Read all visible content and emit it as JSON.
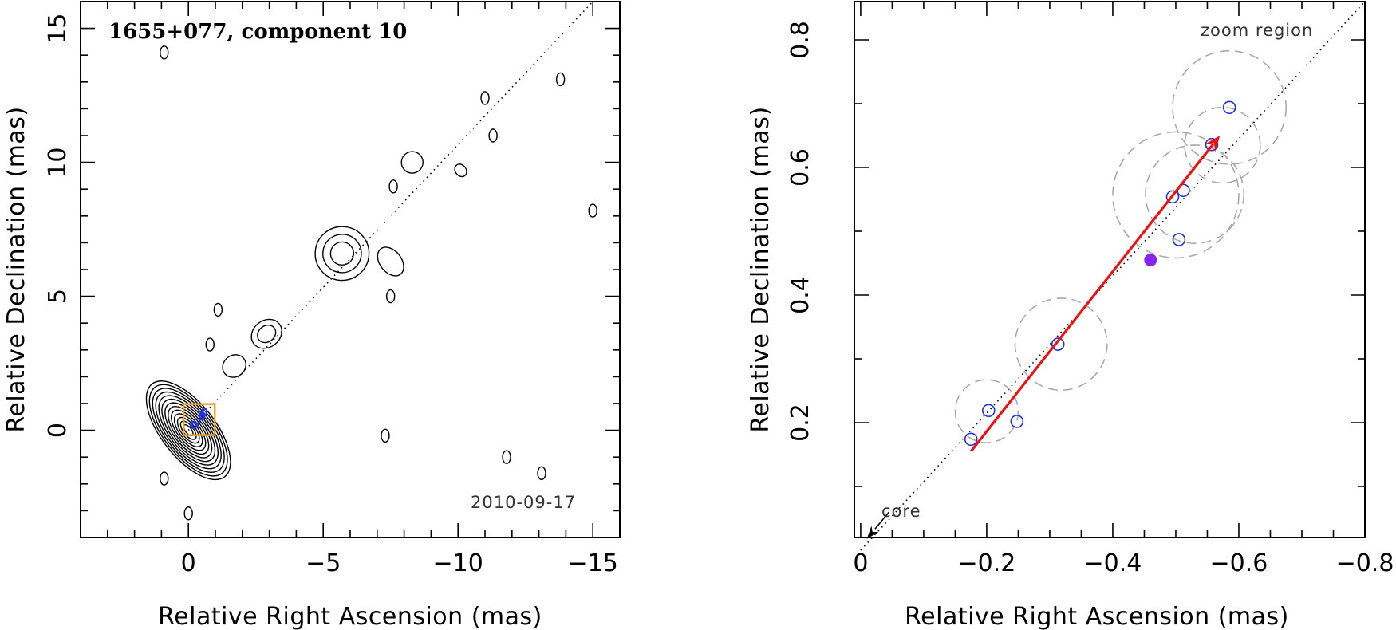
{
  "colors": {
    "axis": "#000000",
    "contour": "#000000",
    "epoch_marker": "#2233dd",
    "velocity_arrow": "#ee1111",
    "mean_position": "#8822ee",
    "uncertainty_circle": "#aaaaaa",
    "zoom_box": "#f0a020"
  },
  "chart_data": [
    {
      "type": "contour",
      "title": "1655+077, component 10",
      "xlabel": "Relative Right Ascension (mas)",
      "ylabel": "Relative Declination (mas)",
      "xlim": [
        4,
        -16
      ],
      "ylim": [
        -4,
        16
      ],
      "x_ticks": [
        0,
        -5,
        -10,
        -15
      ],
      "y_ticks": [
        0,
        5,
        10,
        15
      ],
      "x_tick_labels": [
        "0",
        "−5",
        "−10",
        "−15"
      ],
      "y_tick_labels": [
        "0",
        "5",
        "10",
        "15"
      ],
      "date_label": "2010-09-17",
      "jet_axis": {
        "from": [
          0,
          0
        ],
        "to": [
          -15,
          16
        ]
      },
      "zoom_box": {
        "x": [
          -0.8,
          0
        ],
        "y": [
          0,
          0.8
        ]
      },
      "components": [
        {
          "x": 0,
          "y": 0,
          "rx": 1.0,
          "ry": 2.2,
          "levels": 13
        },
        {
          "x": -2.9,
          "y": 3.6,
          "rx": 0.6,
          "ry": 0.5,
          "levels": 2
        },
        {
          "x": -1.7,
          "y": 2.4,
          "rx": 0.45,
          "ry": 0.4,
          "levels": 1
        },
        {
          "x": -5.7,
          "y": 6.6,
          "rx": 1.0,
          "ry": 1.0,
          "levels": 3
        },
        {
          "x": -7.5,
          "y": 6.3,
          "rx": 0.4,
          "ry": 0.6,
          "levels": 1
        },
        {
          "x": -8.3,
          "y": 10.0,
          "rx": 0.4,
          "ry": 0.4,
          "levels": 1
        },
        {
          "x": -10.1,
          "y": 9.7,
          "rx": 0.2,
          "ry": 0.25,
          "levels": 1
        }
      ]
    },
    {
      "type": "scatter",
      "xlabel": "Relative Right Ascension (mas)",
      "ylabel": "Relative Declination (mas)",
      "xlim": [
        0.01,
        -0.8
      ],
      "ylim": [
        0.02,
        0.86
      ],
      "x_ticks": [
        0,
        -0.2,
        -0.4,
        -0.6,
        -0.8
      ],
      "y_ticks": [
        0.2,
        0.4,
        0.6,
        0.8
      ],
      "x_tick_labels": [
        "0",
        "−0.2",
        "−0.4",
        "−0.6",
        "−0.8"
      ],
      "y_tick_labels": [
        "0.2",
        "0.4",
        "0.6",
        "0.8"
      ],
      "zoom_label": "zoom region",
      "core_label": "core",
      "jet_axis": {
        "from": [
          0,
          0
        ],
        "to": [
          -0.82,
          0.86
        ]
      },
      "core_arrow": {
        "from": [
          -0.045,
          0.06
        ],
        "to": [
          -0.01,
          0.018
        ]
      },
      "epochs": [
        {
          "x": -0.175,
          "y": 0.174
        },
        {
          "x": -0.203,
          "y": 0.219
        },
        {
          "x": -0.248,
          "y": 0.202
        },
        {
          "x": -0.313,
          "y": 0.323
        },
        {
          "x": -0.495,
          "y": 0.554
        },
        {
          "x": -0.512,
          "y": 0.564
        },
        {
          "x": -0.505,
          "y": 0.487
        },
        {
          "x": -0.557,
          "y": 0.636
        },
        {
          "x": -0.585,
          "y": 0.694
        }
      ],
      "uncertainty_circles": [
        {
          "x": -0.2,
          "y": 0.218,
          "r": 0.05
        },
        {
          "x": -0.318,
          "y": 0.323,
          "r": 0.073
        },
        {
          "x": -0.5,
          "y": 0.557,
          "r": 0.1
        },
        {
          "x": -0.53,
          "y": 0.558,
          "r": 0.078
        },
        {
          "x": -0.574,
          "y": 0.635,
          "r": 0.06
        },
        {
          "x": -0.585,
          "y": 0.694,
          "r": 0.09
        }
      ],
      "mean_position": {
        "x": -0.46,
        "y": 0.455
      },
      "velocity_vector": {
        "from": [
          -0.175,
          0.155
        ],
        "to": [
          -0.57,
          0.65
        ]
      }
    }
  ]
}
